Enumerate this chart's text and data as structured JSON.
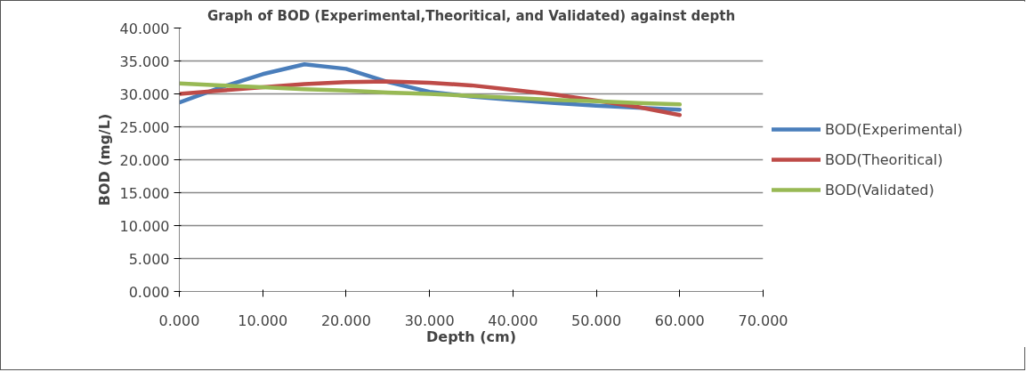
{
  "chart_data": {
    "type": "line",
    "title": "Graph of BOD (Experimental,Theoritical, and Validated) against depth",
    "xlabel": "Depth (cm)",
    "ylabel": "BOD (mg/L)",
    "x": [
      0,
      5,
      10,
      15,
      20,
      25,
      30,
      35,
      40,
      45,
      50,
      55,
      60
    ],
    "series": [
      {
        "name": "BOD(Experimental)",
        "color": "#4a7ebb",
        "values": [
          28.7,
          31.0,
          33.0,
          34.5,
          33.8,
          31.8,
          30.3,
          29.6,
          29.1,
          28.6,
          28.2,
          27.9,
          27.6
        ]
      },
      {
        "name": "BOD(Theoritical)",
        "color": "#be4b48",
        "values": [
          30.0,
          30.5,
          31.0,
          31.5,
          31.8,
          31.9,
          31.7,
          31.3,
          30.6,
          29.9,
          29.0,
          28.0,
          26.8
        ]
      },
      {
        "name": "BOD(Validated)",
        "color": "#98b954",
        "values": [
          31.6,
          31.3,
          31.0,
          30.7,
          30.5,
          30.2,
          30.0,
          29.7,
          29.4,
          29.1,
          28.9,
          28.6,
          28.4
        ]
      }
    ],
    "xlim": [
      0,
      70
    ],
    "ylim": [
      0,
      40
    ],
    "xticks": [
      {
        "value": 0,
        "label": "0.000"
      },
      {
        "value": 10,
        "label": "10.000"
      },
      {
        "value": 20,
        "label": "20.000"
      },
      {
        "value": 30,
        "label": "30.000"
      },
      {
        "value": 40,
        "label": "40.000"
      },
      {
        "value": 50,
        "label": "50.000"
      },
      {
        "value": 60,
        "label": "60.000"
      },
      {
        "value": 70,
        "label": "70.000"
      }
    ],
    "yticks": [
      {
        "value": 0,
        "label": "0.000"
      },
      {
        "value": 5,
        "label": "5.000"
      },
      {
        "value": 10,
        "label": "10.000"
      },
      {
        "value": 15,
        "label": "15.000"
      },
      {
        "value": 20,
        "label": "20.000"
      },
      {
        "value": 25,
        "label": "25.000"
      },
      {
        "value": 30,
        "label": "30.000"
      },
      {
        "value": 35,
        "label": "35.000"
      },
      {
        "value": 40,
        "label": "40.000"
      }
    ],
    "grid": "y",
    "legend": "right",
    "marker": "none",
    "line_style": "solid"
  }
}
